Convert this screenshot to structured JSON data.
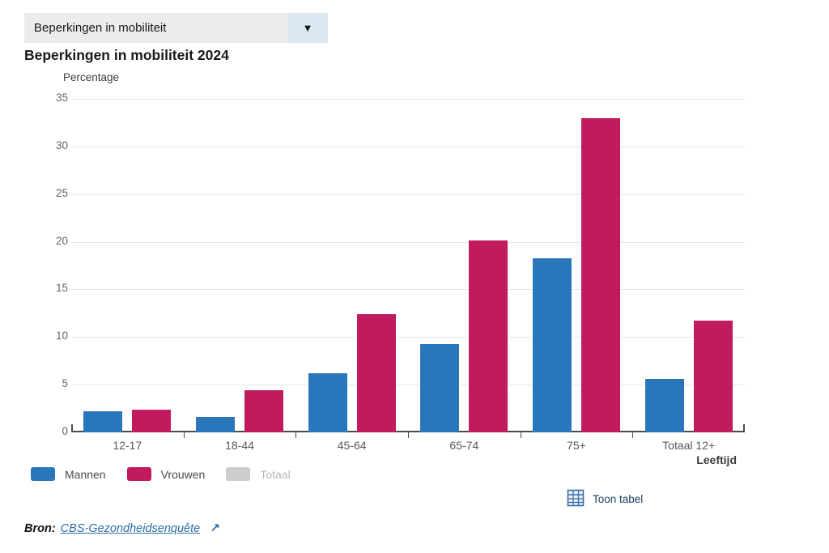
{
  "dropdown": {
    "value": "Beperkingen in mobiliteit"
  },
  "icons": {
    "dropdown_arrow": "▼",
    "external_link": "↗"
  },
  "title": "Beperkingen in mobiliteit 2024",
  "chart_data": {
    "type": "bar",
    "title": "Beperkingen in mobiliteit 2024",
    "ylabel": "Percentage",
    "xlabel": "Leeftijd",
    "ylim": [
      0,
      35
    ],
    "yticks": [
      0,
      5,
      10,
      15,
      20,
      25,
      30,
      35
    ],
    "grid": true,
    "legend_position": "bottom-left",
    "categories": [
      "12-17",
      "18-44",
      "45-64",
      "65-74",
      "75+",
      "Totaal 12+"
    ],
    "series": [
      {
        "name": "Mannen",
        "color": "#2a76bb",
        "enabled": true,
        "values": [
          2.2,
          1.6,
          6.2,
          9.3,
          18.3,
          5.6
        ]
      },
      {
        "name": "Vrouwen",
        "color": "#c11a5d",
        "enabled": true,
        "values": [
          2.4,
          4.4,
          12.4,
          20.1,
          33.0,
          11.7
        ]
      },
      {
        "name": "Totaal",
        "color": "#cccccc",
        "enabled": false,
        "values": []
      }
    ]
  },
  "footer": {
    "show_table_label": "Toon tabel",
    "source_label": "Bron:",
    "source_link": "CBS-Gezondheidsenquête"
  },
  "colors": {
    "mannen": "#2a76bb",
    "vrouwen": "#c11a5d",
    "totaal_disabled": "#cccccc",
    "dropdown_field_bg": "#ececec",
    "dropdown_button_bg": "#dce8f3",
    "axis": "#4b4b4b",
    "gridline": "#e7e7e7",
    "link_blue": "#2e6da4"
  }
}
